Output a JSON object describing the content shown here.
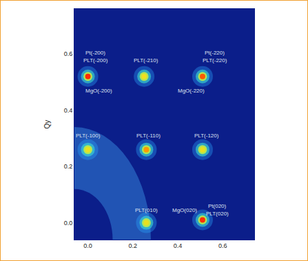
{
  "chart_data": {
    "type": "scatter",
    "y_label": "Qy",
    "x": [
      0,
      0.25,
      0.51,
      0,
      0.26,
      0.51,
      0.26,
      0.51
    ],
    "values": [
      0.52,
      0.52,
      0.52,
      0.26,
      0.26,
      0.26,
      0,
      0.01
    ],
    "colors": [
      "#ff2a00",
      "#f0e020",
      "#ff5a00",
      "#e8e020",
      "#ff9a00",
      "#e8e020",
      "#e8e020",
      "#ff3000"
    ],
    "annotations": [
      {
        "text": "Pt(-200)",
        "x": 0.035,
        "y": 0.605
      },
      {
        "text": "PLT(-200)",
        "x": 0.035,
        "y": 0.578
      },
      {
        "text": "MgO(-200)",
        "x": 0.05,
        "y": 0.468
      },
      {
        "text": "PLT(-210)",
        "x": 0.26,
        "y": 0.578
      },
      {
        "text": "Pt(-220)",
        "x": 0.565,
        "y": 0.605
      },
      {
        "text": "PLT(-220)",
        "x": 0.565,
        "y": 0.578
      },
      {
        "text": "MgO(-220)",
        "x": 0.46,
        "y": 0.468
      },
      {
        "text": "PLT(-100)",
        "x": 0.0,
        "y": 0.31
      },
      {
        "text": "PLT(-110)",
        "x": 0.27,
        "y": 0.31
      },
      {
        "text": "PLT(-120)",
        "x": 0.53,
        "y": 0.31
      },
      {
        "text": "PLT(010)",
        "x": 0.26,
        "y": 0.045
      },
      {
        "text": "MgO(020)",
        "x": 0.43,
        "y": 0.045
      },
      {
        "text": "Pt(020)",
        "x": 0.575,
        "y": 0.058
      },
      {
        "text": "PLT(020)",
        "x": 0.575,
        "y": 0.033
      }
    ],
    "xlim": [
      -0.06,
      0.74
    ],
    "ylim": [
      -0.06,
      0.76
    ],
    "xticks": [
      {
        "value": 0,
        "label": "0.0"
      },
      0.2,
      0.4,
      0.6
    ],
    "yticks": [
      {
        "value": 0,
        "label": "0.0"
      },
      0.2,
      0.4,
      0.6
    ],
    "grid": false
  }
}
